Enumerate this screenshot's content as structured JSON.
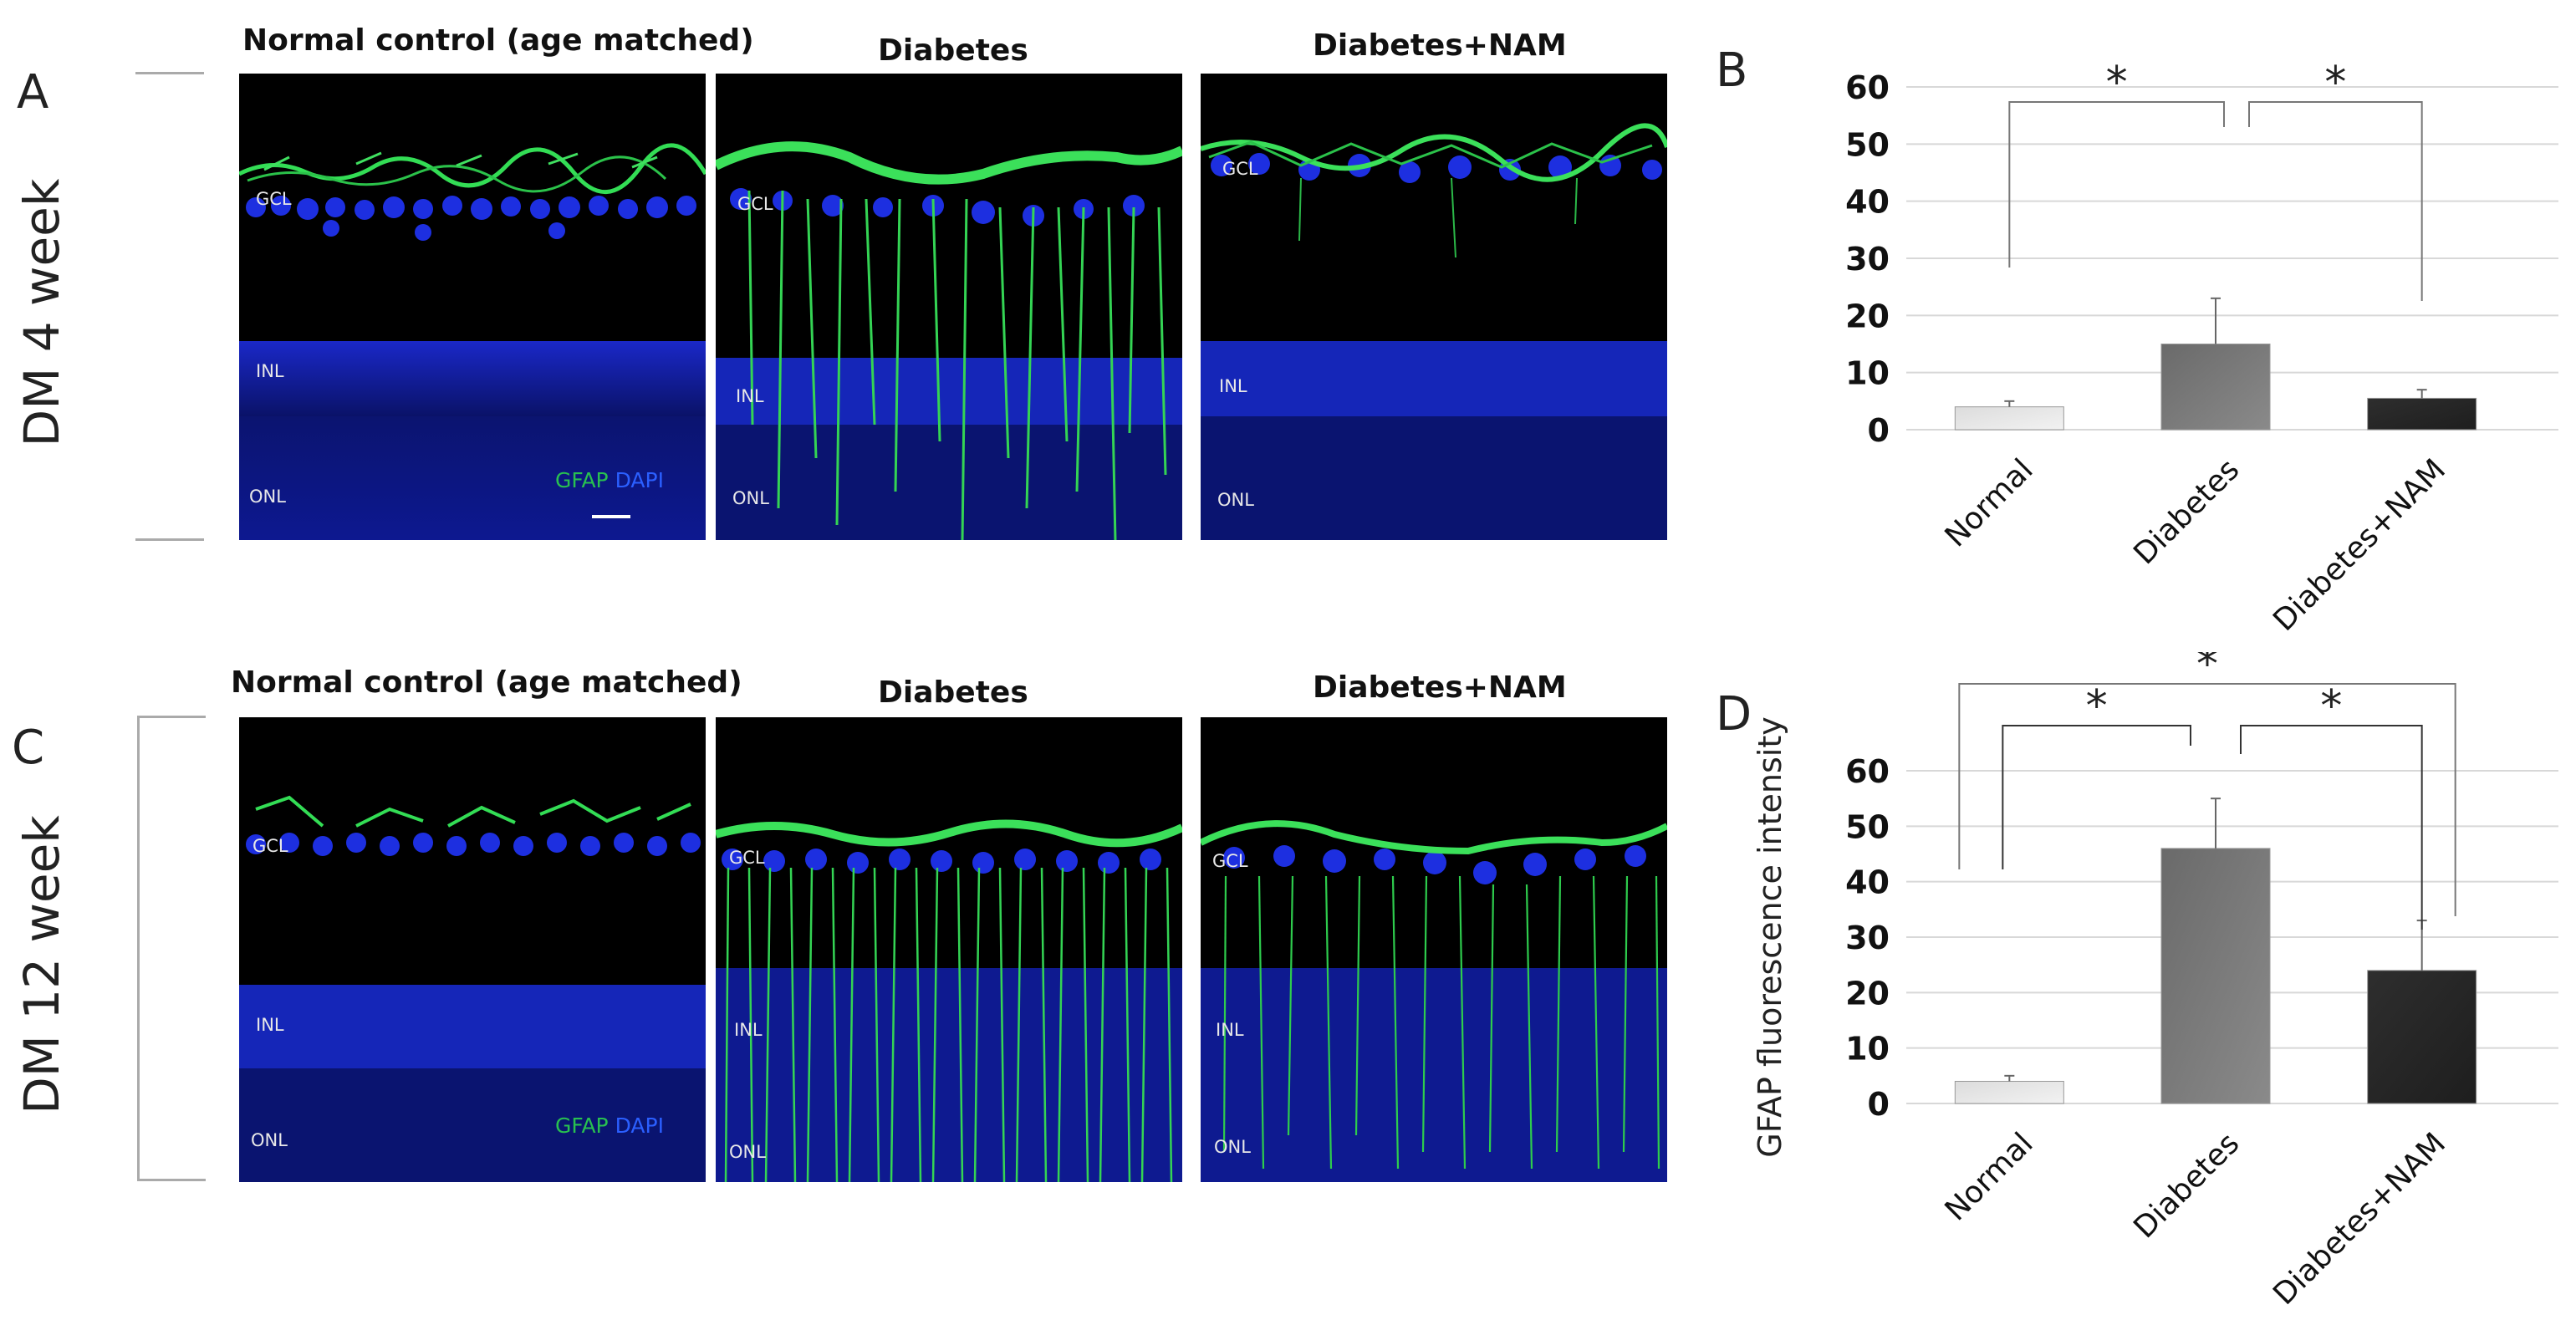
{
  "panels": {
    "A": "A",
    "B": "B",
    "C": "C",
    "D": "D"
  },
  "rows": [
    {
      "label": "DM 4 week",
      "columns": [
        {
          "title": "Normal control (age matched)",
          "layers": [
            "GCL",
            "INL",
            "ONL"
          ],
          "stain_key": {
            "green": "GFAP",
            "blue": "DAPI"
          }
        },
        {
          "title": "Diabetes",
          "layers": [
            "GCL",
            "INL",
            "ONL"
          ]
        },
        {
          "title": "Diabetes+NAM",
          "layers": [
            "GCL",
            "INL",
            "ONL"
          ]
        }
      ]
    },
    {
      "label": "DM 12 week",
      "columns": [
        {
          "title": "Normal control (age matched)",
          "layers": [
            "GCL",
            "INL",
            "ONL"
          ],
          "stain_key": {
            "green": "GFAP",
            "blue": "DAPI"
          }
        },
        {
          "title": "Diabetes",
          "layers": [
            "GCL",
            "INL",
            "ONL"
          ]
        },
        {
          "title": "Diabetes+NAM",
          "layers": [
            "GCL",
            "INL",
            "ONL"
          ]
        }
      ]
    }
  ],
  "colors": {
    "gfap_green": "#2ecc40",
    "dapi_blue": "#1a2cff",
    "background": "#000000"
  },
  "chart_data": [
    {
      "panel": "B",
      "type": "bar",
      "categories": [
        "Normal",
        "Diabetes",
        "Diabetes+NAM"
      ],
      "values": [
        4,
        15,
        5.5
      ],
      "errors": [
        1,
        8,
        1.5
      ],
      "ylabel": "",
      "ylim": [
        0,
        60
      ],
      "yticks": [
        0,
        10,
        20,
        30,
        40,
        50,
        60
      ],
      "grid": true,
      "bar_colors": [
        "#dcdcdc",
        "#6a6a6a",
        "#2e2e2e"
      ],
      "significance": [
        {
          "from": "Normal",
          "to": "Diabetes",
          "label": "*"
        },
        {
          "from": "Diabetes",
          "to": "Diabetes+NAM",
          "label": "*"
        }
      ]
    },
    {
      "panel": "D",
      "type": "bar",
      "categories": [
        "Normal",
        "Diabetes",
        "Diabetes+NAM"
      ],
      "values": [
        4,
        46,
        24
      ],
      "errors": [
        1,
        9,
        9
      ],
      "ylabel": "GFAP fluorescence intensity",
      "ylim": [
        0,
        60
      ],
      "yticks": [
        0,
        10,
        20,
        30,
        40,
        50,
        60
      ],
      "grid": true,
      "bar_colors": [
        "#dcdcdc",
        "#6a6a6a",
        "#2e2e2e"
      ],
      "significance": [
        {
          "from": "Normal",
          "to": "Diabetes",
          "label": "*"
        },
        {
          "from": "Diabetes",
          "to": "Diabetes+NAM",
          "label": "*"
        },
        {
          "from": "Normal",
          "to": "Diabetes+NAM",
          "label": "*"
        }
      ]
    }
  ]
}
